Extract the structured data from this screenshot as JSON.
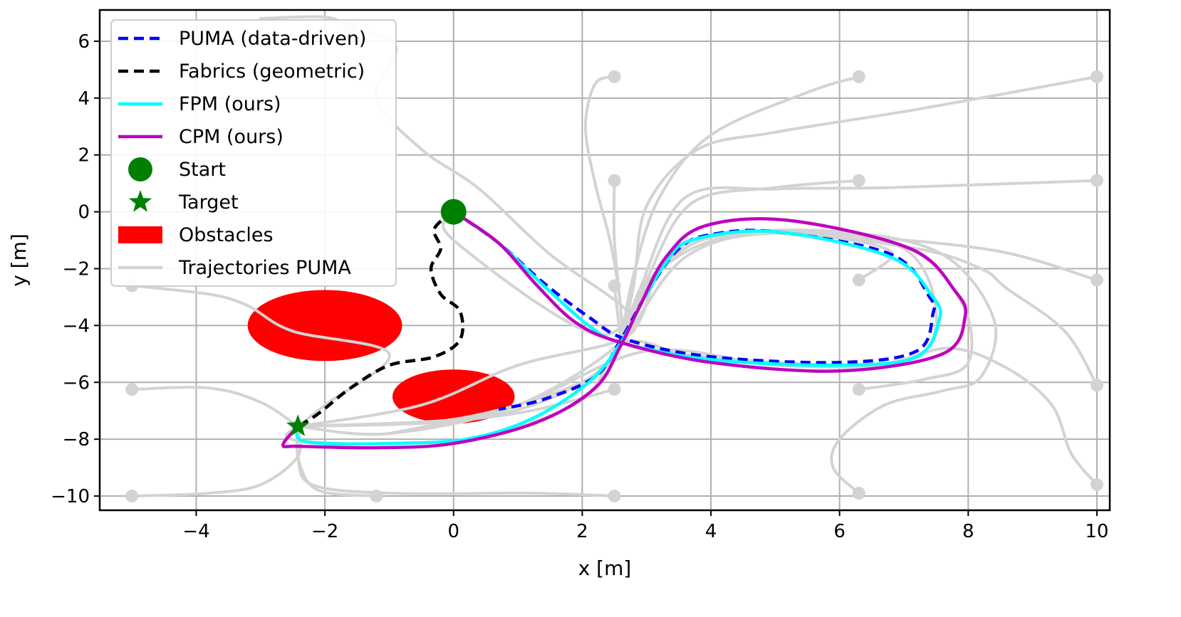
{
  "chart_data": {
    "type": "line",
    "xlabel": "x [m]",
    "ylabel": "y [m]",
    "xlim": [
      -5.5,
      10.2
    ],
    "ylim": [
      -10.5,
      7.1
    ],
    "xticks": [
      -4,
      -2,
      0,
      2,
      4,
      6,
      8,
      10
    ],
    "yticks": [
      6,
      4,
      2,
      0,
      -2,
      -4,
      -6,
      -8,
      -10
    ],
    "xtick_labels": [
      "−4",
      "−2",
      "0",
      "2",
      "4",
      "6",
      "8",
      "10"
    ],
    "ytick_labels": [
      "6",
      "4",
      "2",
      "0",
      "−2",
      "−4",
      "−6",
      "−8",
      "−10"
    ],
    "grid": true,
    "legend_position": "upper-left",
    "legend": [
      {
        "label": "PUMA (data-driven)",
        "kind": "dashed-line",
        "color": "#0000ff"
      },
      {
        "label": "Fabrics (geometric)",
        "kind": "dashed-line",
        "color": "#000000"
      },
      {
        "label": "FPM (ours)",
        "kind": "line",
        "color": "#00ffff"
      },
      {
        "label": "CPM (ours)",
        "kind": "line",
        "color": "#bf00bf"
      },
      {
        "label": "Start",
        "kind": "circle",
        "color": "#008000"
      },
      {
        "label": "Target",
        "kind": "star",
        "color": "#008000"
      },
      {
        "label": "Obstacles",
        "kind": "patch",
        "color": "#ff0000"
      },
      {
        "label": "Trajectories PUMA",
        "kind": "line",
        "color": "#d3d3d3"
      }
    ],
    "start": [
      0,
      0
    ],
    "target": [
      -2.42,
      -7.55
    ],
    "obstacles": [
      {
        "cx": -2.0,
        "cy": -4.0,
        "rx": 1.2,
        "ry": 1.25
      },
      {
        "cx": 0.0,
        "cy": -6.5,
        "rx": 0.95,
        "ry": 0.95
      }
    ],
    "series": [
      {
        "name": "Trajectories PUMA",
        "color": "#d3d3d3",
        "style": "solid",
        "lines": [
          [
            [
              -5,
              -6.25
            ],
            [
              -3.8,
              -6.2
            ],
            [
              -3,
              -6.7
            ],
            [
              -2.42,
              -7.55
            ]
          ],
          [
            [
              -5,
              -10
            ],
            [
              -3.8,
              -9.9
            ],
            [
              -3,
              -9.6
            ],
            [
              -2.42,
              -8.6
            ],
            [
              -2.42,
              -7.55
            ]
          ],
          [
            [
              -1.2,
              -10
            ],
            [
              -2.1,
              -9.8
            ],
            [
              -2.4,
              -8.8
            ],
            [
              -2.42,
              -7.55
            ]
          ],
          [
            [
              -5,
              -2.6
            ],
            [
              -3.8,
              -2.9
            ],
            [
              -3.2,
              -3.3
            ],
            [
              -2.5,
              -4.2
            ],
            [
              -1,
              -5
            ],
            [
              -2,
              -6.8
            ],
            [
              -2.42,
              -7.55
            ]
          ],
          [
            [
              2.5,
              -6.25
            ],
            [
              1.2,
              -7
            ],
            [
              -0.2,
              -7.4
            ],
            [
              -1.5,
              -7.5
            ],
            [
              -2.42,
              -7.55
            ]
          ],
          [
            [
              2.5,
              -10
            ],
            [
              1.2,
              -9.9
            ],
            [
              -1,
              -9.9
            ],
            [
              -2.2,
              -9.6
            ],
            [
              -2.42,
              -8.6
            ],
            [
              -2.42,
              -7.55
            ]
          ],
          [
            [
              -1.6,
              6.5
            ],
            [
              -0.9,
              5.8
            ],
            [
              -1.2,
              4
            ],
            [
              -0.5,
              2.2
            ],
            [
              0.4,
              0.8
            ],
            [
              1.5,
              -1.5
            ],
            [
              2.7,
              -3.5
            ],
            [
              2.6,
              -4.5
            ],
            [
              1,
              -5.4
            ],
            [
              -0.5,
              -6.8
            ],
            [
              -2.42,
              -7.55
            ]
          ],
          [
            [
              -1.6,
              6.5
            ],
            [
              -2,
              6.85
            ],
            [
              -3,
              6.8
            ]
          ],
          [
            [
              2.5,
              4.75
            ],
            [
              2.2,
              4.5
            ],
            [
              2.05,
              3
            ],
            [
              2.2,
              1
            ],
            [
              2.45,
              -1.2
            ],
            [
              2.6,
              -3.5
            ],
            [
              2.55,
              -4.8
            ],
            [
              2,
              -6
            ],
            [
              0,
              -7.3
            ],
            [
              -2.42,
              -7.55
            ]
          ],
          [
            [
              2.5,
              1.1
            ],
            [
              2.5,
              -1
            ],
            [
              2.6,
              -3.5
            ],
            [
              2.6,
              -4.6
            ],
            [
              2,
              -6
            ],
            [
              0.5,
              -7.2
            ],
            [
              -2.42,
              -7.55
            ]
          ],
          [
            [
              2.5,
              -2.6
            ],
            [
              2.6,
              -4.6
            ]
          ],
          [
            [
              6.3,
              4.75
            ],
            [
              5.5,
              4.2
            ],
            [
              4,
              2.7
            ],
            [
              3.2,
              0.5
            ],
            [
              2.8,
              -2.2
            ],
            [
              2.6,
              -4.6
            ]
          ],
          [
            [
              10,
              4.75
            ],
            [
              7.2,
              3.6
            ],
            [
              5,
              2.8
            ],
            [
              3.8,
              2.2
            ],
            [
              3,
              0.2
            ],
            [
              2.8,
              -2.6
            ],
            [
              2.6,
              -4.6
            ]
          ],
          [
            [
              10,
              1.1
            ],
            [
              6.8,
              0.85
            ],
            [
              5,
              0.8
            ],
            [
              3.6,
              0.5
            ],
            [
              2.9,
              -2.7
            ],
            [
              2.6,
              -4.6
            ]
          ],
          [
            [
              6.3,
              1.1
            ],
            [
              5,
              0.85
            ],
            [
              3.7,
              0.3
            ],
            [
              3,
              -2.4
            ],
            [
              2.6,
              -4.6
            ]
          ],
          [
            [
              10,
              -2.4
            ],
            [
              8.5,
              -1.4
            ],
            [
              6.5,
              -0.9
            ],
            [
              5,
              -0.75
            ],
            [
              4,
              -0.85
            ],
            [
              3.2,
              -2.1
            ],
            [
              2.7,
              -4.4
            ],
            [
              1,
              -6.8
            ],
            [
              -1,
              -7.8
            ],
            [
              -2.42,
              -7.55
            ]
          ],
          [
            [
              6.3,
              -2.4
            ],
            [
              6.8,
              -1.4
            ],
            [
              5.5,
              -0.8
            ],
            [
              4.2,
              -0.9
            ],
            [
              3.2,
              -2.1
            ],
            [
              2.7,
              -4.4
            ],
            [
              3.2,
              -4.9
            ],
            [
              5,
              -5.3
            ],
            [
              6.2,
              -5.4
            ]
          ],
          [
            [
              10,
              -6.1
            ],
            [
              9.5,
              -4.2
            ],
            [
              8.6,
              -2.7
            ],
            [
              8.2,
              -2
            ],
            [
              7.2,
              -1.3
            ],
            [
              5,
              -0.75
            ],
            [
              3.6,
              -1.6
            ],
            [
              2.7,
              -4.4
            ]
          ],
          [
            [
              10,
              -9.6
            ],
            [
              9.6,
              -8.5
            ],
            [
              9.3,
              -6.8
            ],
            [
              8.6,
              -5.5
            ],
            [
              7.7,
              -4.8
            ],
            [
              6.6,
              -5.4
            ],
            [
              5,
              -5.4
            ],
            [
              3,
              -4.9
            ],
            [
              1,
              -6.8
            ],
            [
              -1,
              -7.8
            ]
          ],
          [
            [
              6.3,
              -9.9
            ],
            [
              5.9,
              -9
            ],
            [
              6,
              -8
            ],
            [
              6.7,
              -6.8
            ],
            [
              7.6,
              -6.3
            ],
            [
              8.2,
              -5.8
            ],
            [
              8.4,
              -3.8
            ],
            [
              7.6,
              -1.5
            ],
            [
              6,
              -0.7
            ],
            [
              4,
              -0.9
            ],
            [
              3,
              -2.5
            ],
            [
              2.6,
              -4.6
            ]
          ],
          [
            [
              6.3,
              -6.25
            ],
            [
              7.3,
              -5.9
            ],
            [
              8.0,
              -5.3
            ],
            [
              7.9,
              -3.2
            ],
            [
              7,
              -1.2
            ],
            [
              5,
              -0.7
            ],
            [
              3.5,
              -1.4
            ],
            [
              2.6,
              -4.6
            ]
          ],
          [
            [
              -2.42,
              -7.55
            ],
            [
              -2.6,
              -7.9
            ],
            [
              -2.2,
              -8.1
            ],
            [
              -1,
              -8.15
            ],
            [
              0.5,
              -7.9
            ],
            [
              2,
              -6.6
            ],
            [
              2.7,
              -4.6
            ],
            [
              4,
              -5.2
            ],
            [
              6.8,
              -5.3
            ],
            [
              7.5,
              -4
            ],
            [
              7,
              -1.3
            ],
            [
              5,
              -0.7
            ],
            [
              3.7,
              -1
            ],
            [
              3,
              -2.6
            ],
            [
              2.2,
              -4.3
            ],
            [
              0,
              -1
            ],
            [
              0,
              0
            ]
          ]
        ]
      },
      {
        "name": "PUMA (data-driven)",
        "color": "#0000ff",
        "style": "dashed",
        "points": [
          [
            0,
            0
          ],
          [
            0.7,
            -1.1
          ],
          [
            1.4,
            -2.5
          ],
          [
            2.1,
            -3.7
          ],
          [
            2.7,
            -4.5
          ],
          [
            4,
            -5.1
          ],
          [
            6,
            -5.3
          ],
          [
            7.2,
            -4.9
          ],
          [
            7.45,
            -3.6
          ],
          [
            7.4,
            -3
          ],
          [
            6.8,
            -1.5
          ],
          [
            5,
            -0.7
          ],
          [
            4,
            -0.8
          ],
          [
            3.5,
            -1.3
          ],
          [
            3.05,
            -2.7
          ],
          [
            2.6,
            -4.5
          ],
          [
            2.2,
            -5.8
          ],
          [
            1.4,
            -6.6
          ],
          [
            0.7,
            -6.95
          ]
        ]
      },
      {
        "name": "Fabrics (geometric)",
        "color": "#000000",
        "style": "dashed",
        "points": [
          [
            0,
            0
          ],
          [
            -0.3,
            -0.6
          ],
          [
            -0.2,
            -1.3
          ],
          [
            -0.35,
            -2
          ],
          [
            -0.2,
            -2.9
          ],
          [
            0.1,
            -3.5
          ],
          [
            0.1,
            -4.5
          ],
          [
            -0.3,
            -5.1
          ],
          [
            -1.0,
            -5.4
          ],
          [
            -1.6,
            -6.2
          ],
          [
            -2.1,
            -7.1
          ],
          [
            -2.42,
            -7.55
          ]
        ]
      },
      {
        "name": "FPM (ours)",
        "color": "#00ffff",
        "style": "solid",
        "points": [
          [
            0,
            0
          ],
          [
            0.7,
            -1.1
          ],
          [
            1.4,
            -2.6
          ],
          [
            2.1,
            -4
          ],
          [
            2.6,
            -4.6
          ],
          [
            4,
            -5.2
          ],
          [
            6,
            -5.4
          ],
          [
            7.2,
            -5.1
          ],
          [
            7.55,
            -3.8
          ],
          [
            7.45,
            -3
          ],
          [
            6.8,
            -1.6
          ],
          [
            5,
            -0.7
          ],
          [
            3.7,
            -1.0
          ],
          [
            3.3,
            -1.8
          ],
          [
            2.95,
            -3.1
          ],
          [
            2.6,
            -4.6
          ],
          [
            2.1,
            -6
          ],
          [
            1.2,
            -7.3
          ],
          [
            0.2,
            -8.0
          ],
          [
            -1.0,
            -8.15
          ],
          [
            -2.0,
            -8.15
          ],
          [
            -2.4,
            -8.0
          ],
          [
            -2.42,
            -7.55
          ]
        ]
      },
      {
        "name": "CPM (ours)",
        "color": "#bf00bf",
        "style": "solid",
        "points": [
          [
            0,
            0
          ],
          [
            0.7,
            -1.1
          ],
          [
            1.3,
            -2.6
          ],
          [
            1.9,
            -3.9
          ],
          [
            2.6,
            -4.6
          ],
          [
            4,
            -5.3
          ],
          [
            6,
            -5.6
          ],
          [
            7.6,
            -5.0
          ],
          [
            7.95,
            -3.7
          ],
          [
            7.8,
            -2.8
          ],
          [
            7.1,
            -1.3
          ],
          [
            5.2,
            -0.3
          ],
          [
            3.9,
            -0.5
          ],
          [
            3.3,
            -1.6
          ],
          [
            2.9,
            -3.3
          ],
          [
            2.6,
            -4.7
          ],
          [
            2.2,
            -6.2
          ],
          [
            1.3,
            -7.4
          ],
          [
            0,
            -8.15
          ],
          [
            -1.2,
            -8.3
          ],
          [
            -2.4,
            -8.25
          ],
          [
            -2.65,
            -8.2
          ],
          [
            -2.42,
            -7.55
          ]
        ]
      }
    ]
  }
}
